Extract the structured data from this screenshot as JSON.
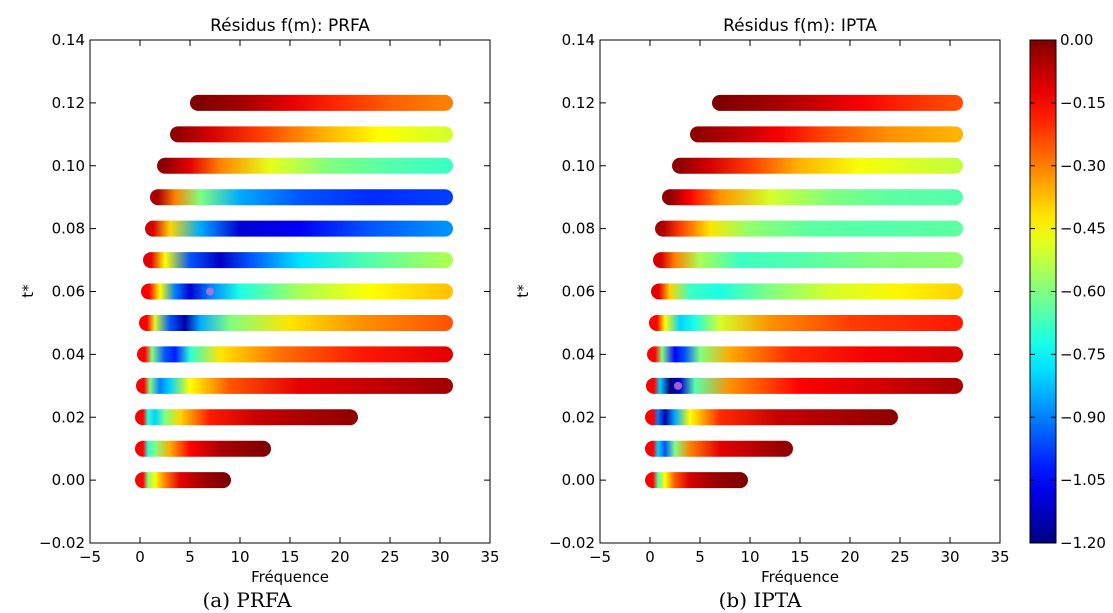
{
  "chart_data": [
    {
      "type": "scatter",
      "title": "Résidus f(m): PRFA",
      "caption": "(a) PRFA",
      "xlabel": "Fréquence",
      "ylabel": "t*",
      "xlim": [
        -5,
        35
      ],
      "ylim": [
        -0.02,
        0.14
      ],
      "xticks": [
        "−5",
        "0",
        "5",
        "10",
        "15",
        "20",
        "25",
        "30",
        "35"
      ],
      "yticks": [
        "−0.02",
        "0.00",
        "0.02",
        "0.04",
        "0.06",
        "0.08",
        "0.10",
        "0.12",
        "0.14"
      ],
      "grid": false,
      "best_fit_marker": {
        "x": 7,
        "y": 0.06
      },
      "rows": [
        {
          "t": 0.0,
          "fmin": 0.3,
          "fmax": 8.3,
          "stops": [
            [
              0.3,
              -0.15
            ],
            [
              0.8,
              -0.6
            ],
            [
              1.5,
              -0.45
            ],
            [
              2.5,
              -0.3
            ],
            [
              4,
              -0.12
            ],
            [
              6,
              -0.05
            ],
            [
              8.3,
              0
            ]
          ]
        },
        {
          "t": 0.01,
          "fmin": 0.3,
          "fmax": 12.3,
          "stops": [
            [
              0.3,
              -0.15
            ],
            [
              0.8,
              -0.7
            ],
            [
              1.5,
              -0.6
            ],
            [
              3,
              -0.35
            ],
            [
              5,
              -0.15
            ],
            [
              8,
              -0.05
            ],
            [
              12.3,
              0
            ]
          ]
        },
        {
          "t": 0.02,
          "fmin": 0.3,
          "fmax": 21,
          "stops": [
            [
              0.3,
              -0.15
            ],
            [
              0.8,
              -0.7
            ],
            [
              1.5,
              -0.8
            ],
            [
              2.5,
              -0.6
            ],
            [
              4,
              -0.4
            ],
            [
              7,
              -0.18
            ],
            [
              12,
              -0.08
            ],
            [
              21,
              -0.02
            ]
          ]
        },
        {
          "t": 0.03,
          "fmin": 0.4,
          "fmax": 30.5,
          "stops": [
            [
              0.4,
              -0.15
            ],
            [
              1,
              -0.6
            ],
            [
              2,
              -0.9
            ],
            [
              3,
              -0.8
            ],
            [
              5,
              -0.45
            ],
            [
              9,
              -0.25
            ],
            [
              16,
              -0.12
            ],
            [
              30.5,
              -0.04
            ]
          ]
        },
        {
          "t": 0.04,
          "fmin": 0.5,
          "fmax": 30.5,
          "stops": [
            [
              0.5,
              -0.15
            ],
            [
              1.2,
              -0.6
            ],
            [
              2.5,
              -0.95
            ],
            [
              3.5,
              -1.02
            ],
            [
              5,
              -0.7
            ],
            [
              8,
              -0.42
            ],
            [
              14,
              -0.28
            ],
            [
              22,
              -0.18
            ],
            [
              30.5,
              -0.12
            ]
          ]
        },
        {
          "t": 0.05,
          "fmin": 0.7,
          "fmax": 30.5,
          "stops": [
            [
              0.7,
              -0.15
            ],
            [
              1.5,
              -0.5
            ],
            [
              3,
              -0.95
            ],
            [
              4.5,
              -1.15
            ],
            [
              6,
              -0.85
            ],
            [
              9,
              -0.6
            ],
            [
              15,
              -0.42
            ],
            [
              22,
              -0.32
            ],
            [
              30.5,
              -0.25
            ]
          ]
        },
        {
          "t": 0.06,
          "fmin": 0.9,
          "fmax": 30.5,
          "stops": [
            [
              0.9,
              -0.15
            ],
            [
              2,
              -0.45
            ],
            [
              3.5,
              -0.9
            ],
            [
              5,
              -1.1
            ],
            [
              7,
              -0.9
            ],
            [
              10,
              -0.72
            ],
            [
              16,
              -0.55
            ],
            [
              23,
              -0.45
            ],
            [
              30.5,
              -0.38
            ]
          ]
        },
        {
          "t": 0.07,
          "fmin": 1.1,
          "fmax": 30.5,
          "stops": [
            [
              1.1,
              -0.12
            ],
            [
              2.5,
              -0.45
            ],
            [
              5,
              -0.95
            ],
            [
              8,
              -1.12
            ],
            [
              11,
              -0.95
            ],
            [
              16,
              -0.78
            ],
            [
              23,
              -0.65
            ],
            [
              30.5,
              -0.55
            ]
          ]
        },
        {
          "t": 0.08,
          "fmin": 1.3,
          "fmax": 30.5,
          "stops": [
            [
              1.3,
              -0.1
            ],
            [
              3,
              -0.4
            ],
            [
              6,
              -0.85
            ],
            [
              10,
              -1.1
            ],
            [
              16,
              -1.06
            ],
            [
              23,
              -0.95
            ],
            [
              30.5,
              -0.88
            ]
          ]
        },
        {
          "t": 0.09,
          "fmin": 1.8,
          "fmax": 30.5,
          "stops": [
            [
              1.8,
              -0.05
            ],
            [
              3.5,
              -0.3
            ],
            [
              6,
              -0.6
            ],
            [
              10,
              -0.85
            ],
            [
              16,
              -0.95
            ],
            [
              23,
              -1.0
            ],
            [
              30.5,
              -0.98
            ]
          ]
        },
        {
          "t": 0.1,
          "fmin": 2.5,
          "fmax": 30.5,
          "stops": [
            [
              2.5,
              -0.02
            ],
            [
              5,
              -0.12
            ],
            [
              8,
              -0.3
            ],
            [
              13,
              -0.48
            ],
            [
              19,
              -0.6
            ],
            [
              25,
              -0.65
            ],
            [
              30.5,
              -0.68
            ]
          ]
        },
        {
          "t": 0.11,
          "fmin": 3.8,
          "fmax": 30.5,
          "stops": [
            [
              3.8,
              -0.02
            ],
            [
              7,
              -0.1
            ],
            [
              12,
              -0.22
            ],
            [
              18,
              -0.35
            ],
            [
              24,
              -0.45
            ],
            [
              30.5,
              -0.5
            ]
          ]
        },
        {
          "t": 0.12,
          "fmin": 5.8,
          "fmax": 30.5,
          "stops": [
            [
              5.8,
              0
            ],
            [
              10,
              -0.04
            ],
            [
              15,
              -0.12
            ],
            [
              20,
              -0.2
            ],
            [
              25,
              -0.26
            ],
            [
              30.5,
              -0.3
            ]
          ]
        }
      ]
    },
    {
      "type": "scatter",
      "title": "Résidus f(m): IPTA",
      "caption": "(b) IPTA",
      "xlabel": "Fréquence",
      "ylabel": "t*",
      "xlim": [
        -5,
        35
      ],
      "ylim": [
        -0.02,
        0.14
      ],
      "xticks": [
        "−5",
        "0",
        "5",
        "10",
        "15",
        "20",
        "25",
        "30",
        "35"
      ],
      "yticks": [
        "−0.02",
        "0.00",
        "0.02",
        "0.04",
        "0.06",
        "0.08",
        "0.10",
        "0.12",
        "0.14"
      ],
      "grid": false,
      "best_fit_marker": {
        "x": 2.8,
        "y": 0.03
      },
      "rows": [
        {
          "t": 0.0,
          "fmin": 0.3,
          "fmax": 9,
          "stops": [
            [
              0.3,
              -0.15
            ],
            [
              0.8,
              -0.65
            ],
            [
              1.5,
              -0.45
            ],
            [
              2.5,
              -0.25
            ],
            [
              4,
              -0.1
            ],
            [
              6,
              -0.04
            ],
            [
              9,
              0
            ]
          ]
        },
        {
          "t": 0.01,
          "fmin": 0.3,
          "fmax": 13.5,
          "stops": [
            [
              0.3,
              -0.15
            ],
            [
              0.8,
              -0.8
            ],
            [
              1.5,
              -0.95
            ],
            [
              2.5,
              -0.6
            ],
            [
              4,
              -0.3
            ],
            [
              7,
              -0.12
            ],
            [
              13.5,
              -0.02
            ]
          ]
        },
        {
          "t": 0.02,
          "fmin": 0.3,
          "fmax": 24,
          "stops": [
            [
              0.3,
              -0.15
            ],
            [
              0.8,
              -0.9
            ],
            [
              1.5,
              -1.15
            ],
            [
              2.5,
              -0.85
            ],
            [
              4,
              -0.45
            ],
            [
              7,
              -0.2
            ],
            [
              13,
              -0.08
            ],
            [
              24,
              -0.02
            ]
          ]
        },
        {
          "t": 0.03,
          "fmin": 0.4,
          "fmax": 30.5,
          "stops": [
            [
              0.4,
              -0.15
            ],
            [
              1,
              -0.8
            ],
            [
              2,
              -1.2
            ],
            [
              3,
              -1.1
            ],
            [
              4.5,
              -0.65
            ],
            [
              8,
              -0.32
            ],
            [
              15,
              -0.15
            ],
            [
              30.5,
              -0.05
            ]
          ]
        },
        {
          "t": 0.04,
          "fmin": 0.5,
          "fmax": 30.5,
          "stops": [
            [
              0.5,
              -0.15
            ],
            [
              1.2,
              -0.6
            ],
            [
              2.5,
              -1.05
            ],
            [
              3.5,
              -0.95
            ],
            [
              5,
              -0.6
            ],
            [
              8,
              -0.35
            ],
            [
              14,
              -0.2
            ],
            [
              22,
              -0.14
            ],
            [
              30.5,
              -0.1
            ]
          ]
        },
        {
          "t": 0.05,
          "fmin": 0.7,
          "fmax": 30.5,
          "stops": [
            [
              0.7,
              -0.15
            ],
            [
              1.5,
              -0.45
            ],
            [
              3,
              -0.8
            ],
            [
              4.5,
              -0.72
            ],
            [
              7,
              -0.5
            ],
            [
              12,
              -0.32
            ],
            [
              20,
              -0.22
            ],
            [
              30.5,
              -0.18
            ]
          ]
        },
        {
          "t": 0.06,
          "fmin": 0.9,
          "fmax": 30.5,
          "stops": [
            [
              0.9,
              -0.12
            ],
            [
              2,
              -0.4
            ],
            [
              4,
              -0.68
            ],
            [
              7,
              -0.72
            ],
            [
              12,
              -0.6
            ],
            [
              18,
              -0.5
            ],
            [
              25,
              -0.44
            ],
            [
              30.5,
              -0.4
            ]
          ]
        },
        {
          "t": 0.07,
          "fmin": 1.1,
          "fmax": 30.5,
          "stops": [
            [
              1.1,
              -0.1
            ],
            [
              2.5,
              -0.3
            ],
            [
              5,
              -0.55
            ],
            [
              9,
              -0.68
            ],
            [
              15,
              -0.65
            ],
            [
              22,
              -0.6
            ],
            [
              30.5,
              -0.58
            ]
          ]
        },
        {
          "t": 0.08,
          "fmin": 1.3,
          "fmax": 30.5,
          "stops": [
            [
              1.3,
              -0.05
            ],
            [
              3,
              -0.22
            ],
            [
              6,
              -0.42
            ],
            [
              10,
              -0.58
            ],
            [
              16,
              -0.64
            ],
            [
              23,
              -0.65
            ],
            [
              30.5,
              -0.64
            ]
          ]
        },
        {
          "t": 0.09,
          "fmin": 2,
          "fmax": 30.5,
          "stops": [
            [
              2,
              -0.02
            ],
            [
              4,
              -0.15
            ],
            [
              7,
              -0.32
            ],
            [
              12,
              -0.5
            ],
            [
              18,
              -0.6
            ],
            [
              24,
              -0.64
            ],
            [
              30.5,
              -0.65
            ]
          ]
        },
        {
          "t": 0.1,
          "fmin": 3,
          "fmax": 30.5,
          "stops": [
            [
              3,
              -0.02
            ],
            [
              6,
              -0.1
            ],
            [
              10,
              -0.22
            ],
            [
              15,
              -0.36
            ],
            [
              21,
              -0.46
            ],
            [
              30.5,
              -0.52
            ]
          ]
        },
        {
          "t": 0.11,
          "fmin": 4.8,
          "fmax": 30.5,
          "stops": [
            [
              4.8,
              -0.02
            ],
            [
              8,
              -0.06
            ],
            [
              13,
              -0.14
            ],
            [
              18,
              -0.24
            ],
            [
              24,
              -0.32
            ],
            [
              30.5,
              -0.36
            ]
          ]
        },
        {
          "t": 0.12,
          "fmin": 7,
          "fmax": 30.5,
          "stops": [
            [
              7,
              0
            ],
            [
              11,
              -0.03
            ],
            [
              16,
              -0.08
            ],
            [
              21,
              -0.14
            ],
            [
              26,
              -0.2
            ],
            [
              30.5,
              -0.24
            ]
          ]
        }
      ]
    }
  ],
  "colorbar": {
    "min": -1.2,
    "max": 0.0,
    "colormap": "jet",
    "ticks": [
      {
        "value": 0.0,
        "label": "0.00"
      },
      {
        "value": -0.15,
        "label": "−0.15"
      },
      {
        "value": -0.3,
        "label": "−0.30"
      },
      {
        "value": -0.45,
        "label": "−0.45"
      },
      {
        "value": -0.6,
        "label": "−0.60"
      },
      {
        "value": -0.75,
        "label": "−0.75"
      },
      {
        "value": -0.9,
        "label": "−0.90"
      },
      {
        "value": -1.05,
        "label": "−1.05"
      },
      {
        "value": -1.2,
        "label": "−1.20"
      }
    ]
  },
  "colors": {
    "marker": "#c070d0",
    "axes": "#000000"
  }
}
